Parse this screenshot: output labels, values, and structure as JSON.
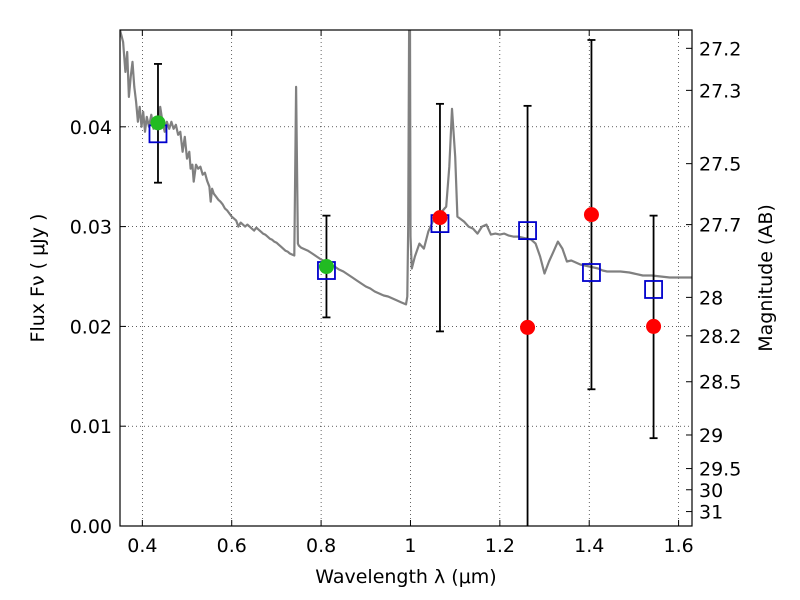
{
  "chart_data": {
    "type": "scatter",
    "title": "",
    "xlabel": "Wavelength  λ (μm)",
    "ylabel_left": "Flux  Fν  ( μJy )",
    "ylabel_right": "Magnitude (AB)",
    "xlim": [
      0.35,
      1.63
    ],
    "ylim": [
      0.0,
      0.0497
    ],
    "grid": true,
    "x_ticks": [
      {
        "value": 0.4,
        "label": "0.4"
      },
      {
        "value": 0.6,
        "label": "0.6"
      },
      {
        "value": 0.8,
        "label": "0.8"
      },
      {
        "value": 1.0,
        "label": "1"
      },
      {
        "value": 1.2,
        "label": "1.2"
      },
      {
        "value": 1.4,
        "label": "1.4"
      },
      {
        "value": 1.6,
        "label": "1.6"
      }
    ],
    "y_ticks": [
      {
        "value": 0.0,
        "label": "0.00"
      },
      {
        "value": 0.01,
        "label": "0.01"
      },
      {
        "value": 0.02,
        "label": "0.02"
      },
      {
        "value": 0.03,
        "label": "0.03"
      },
      {
        "value": 0.04,
        "label": "0.04"
      }
    ],
    "right_ticks": [
      {
        "mag": 27.2,
        "label": "27.2"
      },
      {
        "mag": 27.3,
        "label": "27.3"
      },
      {
        "mag": 27.5,
        "label": "27.5"
      },
      {
        "mag": 27.7,
        "label": "27.7"
      },
      {
        "mag": 28.0,
        "label": "28"
      },
      {
        "mag": 28.2,
        "label": "28.2"
      },
      {
        "mag": 28.5,
        "label": "28.5"
      },
      {
        "mag": 29.0,
        "label": "29"
      },
      {
        "mag": 29.5,
        "label": "29.5"
      },
      {
        "mag": 30.0,
        "label": "30"
      },
      {
        "mag": 31.0,
        "label": "31"
      }
    ],
    "series": [
      {
        "kind": "line",
        "color": "#808080",
        "points": [
          [
            0.35,
            0.0497
          ],
          [
            0.357,
            0.0485
          ],
          [
            0.362,
            0.0455
          ],
          [
            0.366,
            0.0475
          ],
          [
            0.37,
            0.043
          ],
          [
            0.374,
            0.045
          ],
          [
            0.378,
            0.0465
          ],
          [
            0.382,
            0.044
          ],
          [
            0.386,
            0.0425
          ],
          [
            0.39,
            0.0405
          ],
          [
            0.394,
            0.042
          ],
          [
            0.398,
            0.04
          ],
          [
            0.402,
            0.0415
          ],
          [
            0.406,
            0.0395
          ],
          [
            0.41,
            0.041
          ],
          [
            0.415,
            0.04
          ],
          [
            0.42,
            0.0412
          ],
          [
            0.425,
            0.0398
          ],
          [
            0.43,
            0.0408
          ],
          [
            0.435,
            0.04
          ],
          [
            0.44,
            0.042
          ],
          [
            0.445,
            0.0405
          ],
          [
            0.45,
            0.0395
          ],
          [
            0.455,
            0.0405
          ],
          [
            0.46,
            0.0398
          ],
          [
            0.465,
            0.0405
          ],
          [
            0.47,
            0.0398
          ],
          [
            0.475,
            0.0402
          ],
          [
            0.48,
            0.0392
          ],
          [
            0.485,
            0.0395
          ],
          [
            0.49,
            0.0375
          ],
          [
            0.495,
            0.039
          ],
          [
            0.5,
            0.0368
          ],
          [
            0.505,
            0.0375
          ],
          [
            0.508,
            0.0358
          ],
          [
            0.512,
            0.0362
          ],
          [
            0.515,
            0.0345
          ],
          [
            0.52,
            0.0362
          ],
          [
            0.525,
            0.0358
          ],
          [
            0.53,
            0.036
          ],
          [
            0.535,
            0.0352
          ],
          [
            0.54,
            0.0354
          ],
          [
            0.545,
            0.0346
          ],
          [
            0.55,
            0.034
          ],
          [
            0.553,
            0.0325
          ],
          [
            0.556,
            0.0338
          ],
          [
            0.56,
            0.0333
          ],
          [
            0.565,
            0.033
          ],
          [
            0.57,
            0.0327
          ],
          [
            0.575,
            0.0325
          ],
          [
            0.58,
            0.0322
          ],
          [
            0.585,
            0.0318
          ],
          [
            0.59,
            0.0316
          ],
          [
            0.595,
            0.0313
          ],
          [
            0.6,
            0.031
          ],
          [
            0.605,
            0.0308
          ],
          [
            0.61,
            0.0306
          ],
          [
            0.615,
            0.03
          ],
          [
            0.62,
            0.0304
          ],
          [
            0.625,
            0.0302
          ],
          [
            0.63,
            0.03
          ],
          [
            0.635,
            0.0302
          ],
          [
            0.64,
            0.03
          ],
          [
            0.645,
            0.0298
          ],
          [
            0.65,
            0.0296
          ],
          [
            0.655,
            0.0299
          ],
          [
            0.66,
            0.0297
          ],
          [
            0.665,
            0.0295
          ],
          [
            0.67,
            0.0293
          ],
          [
            0.675,
            0.0292
          ],
          [
            0.68,
            0.029
          ],
          [
            0.685,
            0.0288
          ],
          [
            0.69,
            0.0287
          ],
          [
            0.695,
            0.0285
          ],
          [
            0.7,
            0.0284
          ],
          [
            0.705,
            0.0282
          ],
          [
            0.71,
            0.028
          ],
          [
            0.715,
            0.0278
          ],
          [
            0.72,
            0.0276
          ],
          [
            0.725,
            0.0275
          ],
          [
            0.73,
            0.0273
          ],
          [
            0.735,
            0.0272
          ],
          [
            0.74,
            0.0271
          ],
          [
            0.744,
            0.044
          ],
          [
            0.748,
            0.0283
          ],
          [
            0.75,
            0.0281
          ],
          [
            0.755,
            0.0279
          ],
          [
            0.76,
            0.0278
          ],
          [
            0.77,
            0.0276
          ],
          [
            0.78,
            0.0273
          ],
          [
            0.79,
            0.027
          ],
          [
            0.8,
            0.0267
          ],
          [
            0.81,
            0.0265
          ],
          [
            0.82,
            0.0262
          ],
          [
            0.83,
            0.026
          ],
          [
            0.84,
            0.0257
          ],
          [
            0.85,
            0.0255
          ],
          [
            0.86,
            0.0252
          ],
          [
            0.87,
            0.0249
          ],
          [
            0.88,
            0.0246
          ],
          [
            0.89,
            0.0243
          ],
          [
            0.9,
            0.024
          ],
          [
            0.91,
            0.0238
          ],
          [
            0.92,
            0.0235
          ],
          [
            0.93,
            0.0233
          ],
          [
            0.94,
            0.0231
          ],
          [
            0.95,
            0.023
          ],
          [
            0.96,
            0.0228
          ],
          [
            0.97,
            0.0226
          ],
          [
            0.98,
            0.0224
          ],
          [
            0.99,
            0.0222
          ],
          [
            0.993,
            0.023
          ],
          [
            0.995,
            0.03
          ],
          [
            0.997,
            0.0497
          ],
          [
            0.999,
            0.0497
          ],
          [
            1.0,
            0.029
          ],
          [
            1.003,
            0.0258
          ],
          [
            1.01,
            0.027
          ],
          [
            1.02,
            0.0283
          ],
          [
            1.03,
            0.0278
          ],
          [
            1.04,
            0.0295
          ],
          [
            1.05,
            0.0305
          ],
          [
            1.06,
            0.0312
          ],
          [
            1.07,
            0.0315
          ],
          [
            1.08,
            0.032
          ],
          [
            1.087,
            0.036
          ],
          [
            1.093,
            0.0418
          ],
          [
            1.1,
            0.037
          ],
          [
            1.105,
            0.031
          ],
          [
            1.12,
            0.0305
          ],
          [
            1.13,
            0.03
          ],
          [
            1.14,
            0.0298
          ],
          [
            1.15,
            0.0293
          ],
          [
            1.16,
            0.03
          ],
          [
            1.17,
            0.0302
          ],
          [
            1.18,
            0.0292
          ],
          [
            1.19,
            0.0293
          ],
          [
            1.2,
            0.0292
          ],
          [
            1.21,
            0.0293
          ],
          [
            1.22,
            0.0291
          ],
          [
            1.23,
            0.029
          ],
          [
            1.24,
            0.029
          ],
          [
            1.25,
            0.0289
          ],
          [
            1.26,
            0.0288
          ],
          [
            1.27,
            0.0287
          ],
          [
            1.28,
            0.0283
          ],
          [
            1.29,
            0.027
          ],
          [
            1.3,
            0.0253
          ],
          [
            1.31,
            0.0265
          ],
          [
            1.32,
            0.0275
          ],
          [
            1.33,
            0.0285
          ],
          [
            1.34,
            0.0278
          ],
          [
            1.35,
            0.0265
          ],
          [
            1.36,
            0.0266
          ],
          [
            1.37,
            0.0264
          ],
          [
            1.38,
            0.0262
          ],
          [
            1.39,
            0.0261
          ],
          [
            1.4,
            0.026
          ],
          [
            1.41,
            0.0259
          ],
          [
            1.42,
            0.0258
          ],
          [
            1.43,
            0.0256
          ],
          [
            1.44,
            0.0255
          ],
          [
            1.45,
            0.0255
          ],
          [
            1.47,
            0.0255
          ],
          [
            1.49,
            0.0254
          ],
          [
            1.5,
            0.0253
          ],
          [
            1.52,
            0.0251
          ],
          [
            1.54,
            0.0251
          ],
          [
            1.56,
            0.025
          ],
          [
            1.58,
            0.0249
          ],
          [
            1.6,
            0.0249
          ],
          [
            1.63,
            0.0249
          ]
        ]
      },
      {
        "kind": "errorbar",
        "color": "#000000",
        "points": [
          {
            "x": 0.435,
            "low": 0.0344,
            "high": 0.0463
          },
          {
            "x": 0.812,
            "low": 0.0209,
            "high": 0.0311
          },
          {
            "x": 1.066,
            "low": 0.0195,
            "high": 0.0423
          },
          {
            "x": 1.262,
            "low": 0.0,
            "high": 0.0421
          },
          {
            "x": 1.405,
            "low": 0.0137,
            "high": 0.0487
          },
          {
            "x": 1.544,
            "low": 0.0088,
            "high": 0.0311
          }
        ]
      },
      {
        "kind": "open-square",
        "color": "#0000cc",
        "points": [
          [
            0.435,
            0.0393
          ],
          [
            0.812,
            0.0256
          ],
          [
            1.066,
            0.0303
          ],
          [
            1.262,
            0.0296
          ],
          [
            1.405,
            0.0254
          ],
          [
            1.544,
            0.0237
          ]
        ]
      },
      {
        "kind": "dot",
        "color": "#22bb22",
        "points": [
          [
            0.435,
            0.0404
          ],
          [
            0.812,
            0.026
          ]
        ]
      },
      {
        "kind": "dot",
        "color": "#ff0000",
        "points": [
          [
            1.066,
            0.0309
          ],
          [
            1.262,
            0.0199
          ],
          [
            1.405,
            0.0312
          ],
          [
            1.544,
            0.02
          ]
        ]
      }
    ]
  }
}
